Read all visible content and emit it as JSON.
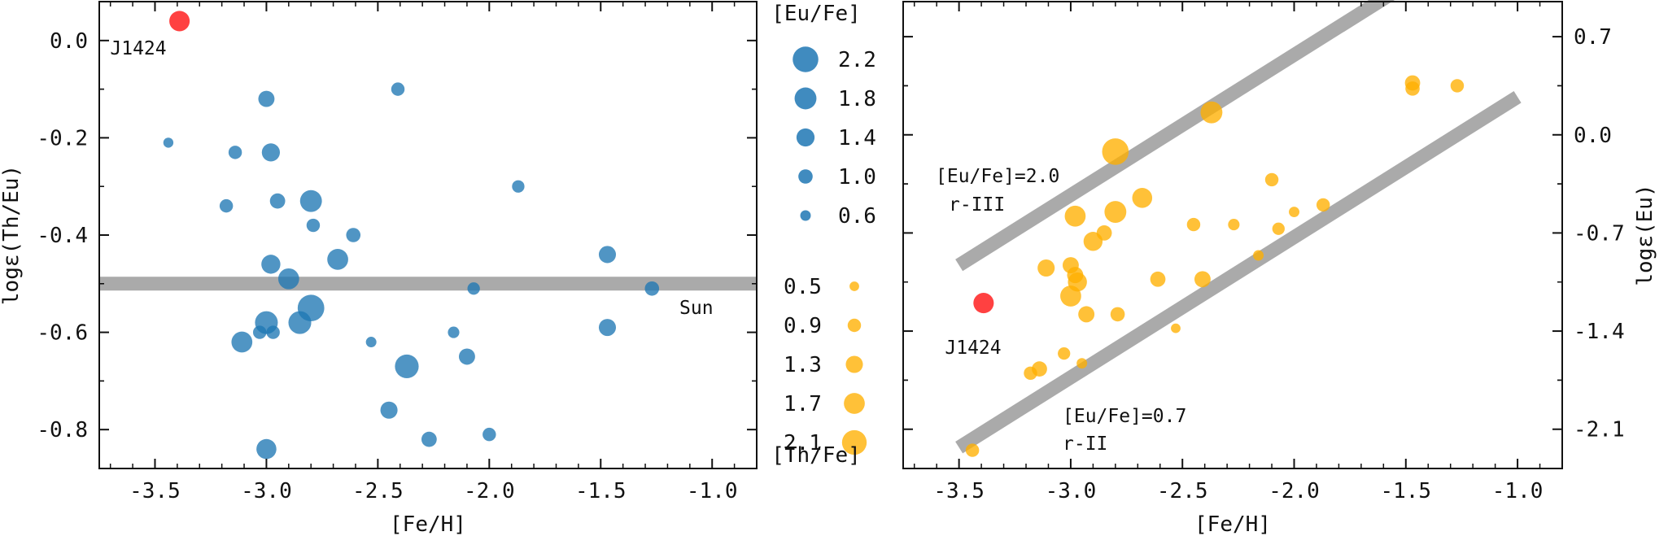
{
  "colors": {
    "eu_points": "#1f77b4",
    "th_points": "#ffb000",
    "star": "#ff2020",
    "band": "#aaaaaa"
  },
  "chart_data": [
    {
      "type": "scatter",
      "panel": "left",
      "xlabel": "[Fe/H]",
      "ylabel": "logε(Th/Eu)",
      "xlim": [
        -3.75,
        -0.8
      ],
      "ylim": [
        -0.88,
        0.08
      ],
      "xticks": [
        -3.5,
        -3.0,
        -2.5,
        -2.0,
        -1.5,
        -1.0
      ],
      "xtick_labels": [
        "-3.5",
        "-3.0",
        "-2.5",
        "-2.0",
        "-1.5",
        "-1.0"
      ],
      "yticks": [
        0.0,
        -0.2,
        -0.4,
        -0.6,
        -0.8
      ],
      "ytick_labels": [
        "0.0",
        "-0.2",
        "-0.4",
        "-0.6",
        "-0.8"
      ],
      "size_variable": "[Eu/Fe]",
      "reference_line": {
        "label": "Sun",
        "y": -0.5
      },
      "highlight": {
        "label": "J1424",
        "x": -3.39,
        "y": 0.04,
        "size": 1.3
      },
      "points": [
        {
          "x": -3.44,
          "y": -0.21,
          "size": 0.55
        },
        {
          "x": -3.18,
          "y": -0.34,
          "size": 0.9
        },
        {
          "x": -3.14,
          "y": -0.23,
          "size": 0.9
        },
        {
          "x": -3.11,
          "y": -0.62,
          "size": 1.7
        },
        {
          "x": -3.03,
          "y": -0.6,
          "size": 0.9
        },
        {
          "x": -3.0,
          "y": -0.84,
          "size": 1.6
        },
        {
          "x": -3.0,
          "y": -0.12,
          "size": 1.2
        },
        {
          "x": -3.0,
          "y": -0.58,
          "size": 1.9
        },
        {
          "x": -2.98,
          "y": -0.46,
          "size": 1.5
        },
        {
          "x": -2.98,
          "y": -0.23,
          "size": 1.4
        },
        {
          "x": -2.97,
          "y": -0.6,
          "size": 0.9
        },
        {
          "x": -2.95,
          "y": -0.33,
          "size": 1.1
        },
        {
          "x": -2.9,
          "y": -0.49,
          "size": 1.7
        },
        {
          "x": -2.85,
          "y": -0.58,
          "size": 1.9
        },
        {
          "x": -2.8,
          "y": -0.55,
          "size": 2.3
        },
        {
          "x": -2.8,
          "y": -0.33,
          "size": 1.8
        },
        {
          "x": -2.79,
          "y": -0.38,
          "size": 0.9
        },
        {
          "x": -2.68,
          "y": -0.45,
          "size": 1.7
        },
        {
          "x": -2.61,
          "y": -0.4,
          "size": 1.0
        },
        {
          "x": -2.53,
          "y": -0.62,
          "size": 0.6
        },
        {
          "x": -2.45,
          "y": -0.76,
          "size": 1.3
        },
        {
          "x": -2.41,
          "y": -0.1,
          "size": 0.9
        },
        {
          "x": -2.37,
          "y": -0.67,
          "size": 2.0
        },
        {
          "x": -2.27,
          "y": -0.82,
          "size": 1.1
        },
        {
          "x": -2.16,
          "y": -0.6,
          "size": 0.7
        },
        {
          "x": -2.1,
          "y": -0.65,
          "size": 1.2
        },
        {
          "x": -2.07,
          "y": -0.51,
          "size": 0.8
        },
        {
          "x": -2.0,
          "y": -0.81,
          "size": 0.9
        },
        {
          "x": -1.87,
          "y": -0.3,
          "size": 0.8
        },
        {
          "x": -1.47,
          "y": -0.44,
          "size": 1.3
        },
        {
          "x": -1.47,
          "y": -0.59,
          "size": 1.3
        },
        {
          "x": -1.27,
          "y": -0.51,
          "size": 1.0
        }
      ]
    },
    {
      "type": "scatter",
      "panel": "right",
      "xlabel": "[Fe/H]",
      "ylabel": "logε(Eu)",
      "xlim": [
        -3.75,
        -0.8
      ],
      "ylim": [
        -2.38,
        0.95
      ],
      "xticks": [
        -3.5,
        -3.0,
        -2.5,
        -2.0,
        -1.5,
        -1.0
      ],
      "xtick_labels": [
        "-3.5",
        "-3.0",
        "-2.5",
        "-2.0",
        "-1.5",
        "-1.0"
      ],
      "yticks": [
        0.7,
        0.0,
        -0.7,
        -1.4,
        -2.1
      ],
      "ytick_labels": [
        "0.7",
        "0.0",
        "-0.7",
        "-1.4",
        "-2.1"
      ],
      "size_variable": "[Th/Fe]",
      "reference_lines": [
        {
          "label": "[Eu/Fe]=2.0",
          "sublabel": "r-III",
          "x": [
            -3.5,
            -1.5
          ],
          "y": [
            -0.93,
            1.07
          ]
        },
        {
          "label": "[Eu/Fe]=0.7",
          "sublabel": "r-II",
          "x": [
            -3.5,
            -1.0
          ],
          "y": [
            -2.23,
            0.27
          ]
        }
      ],
      "highlight": {
        "label": "J1424",
        "x": -3.39,
        "y": -1.2,
        "size": 1.3
      },
      "points": [
        {
          "x": -3.44,
          "y": -2.25,
          "size": 0.9
        },
        {
          "x": -3.18,
          "y": -1.7,
          "size": 0.9
        },
        {
          "x": -3.14,
          "y": -1.67,
          "size": 1.1
        },
        {
          "x": -3.11,
          "y": -0.95,
          "size": 1.3
        },
        {
          "x": -3.03,
          "y": -1.56,
          "size": 0.8
        },
        {
          "x": -3.0,
          "y": -0.93,
          "size": 1.2
        },
        {
          "x": -3.0,
          "y": -1.15,
          "size": 1.7
        },
        {
          "x": -2.98,
          "y": -0.58,
          "size": 1.7
        },
        {
          "x": -2.98,
          "y": -1.0,
          "size": 1.2
        },
        {
          "x": -2.97,
          "y": -1.05,
          "size": 1.5
        },
        {
          "x": -2.95,
          "y": -1.63,
          "size": 0.6
        },
        {
          "x": -2.93,
          "y": -1.28,
          "size": 1.2
        },
        {
          "x": -2.9,
          "y": -0.76,
          "size": 1.5
        },
        {
          "x": -2.85,
          "y": -0.7,
          "size": 1.1
        },
        {
          "x": -2.8,
          "y": -0.12,
          "size": 2.3
        },
        {
          "x": -2.8,
          "y": -0.55,
          "size": 1.8
        },
        {
          "x": -2.79,
          "y": -1.28,
          "size": 1.0
        },
        {
          "x": -2.68,
          "y": -0.45,
          "size": 1.6
        },
        {
          "x": -2.61,
          "y": -1.03,
          "size": 1.1
        },
        {
          "x": -2.53,
          "y": -1.38,
          "size": 0.5
        },
        {
          "x": -2.45,
          "y": -0.64,
          "size": 0.9
        },
        {
          "x": -2.41,
          "y": -1.03,
          "size": 1.2
        },
        {
          "x": -2.37,
          "y": 0.16,
          "size": 1.8
        },
        {
          "x": -2.27,
          "y": -0.64,
          "size": 0.7
        },
        {
          "x": -2.16,
          "y": -0.86,
          "size": 0.6
        },
        {
          "x": -2.1,
          "y": -0.32,
          "size": 0.9
        },
        {
          "x": -2.07,
          "y": -0.67,
          "size": 0.8
        },
        {
          "x": -2.0,
          "y": -0.55,
          "size": 0.6
        },
        {
          "x": -1.87,
          "y": -0.5,
          "size": 0.9
        },
        {
          "x": -1.47,
          "y": 0.37,
          "size": 1.1
        },
        {
          "x": -1.47,
          "y": 0.33,
          "size": 1.0
        },
        {
          "x": -1.27,
          "y": 0.35,
          "size": 0.9
        }
      ]
    }
  ],
  "legend": {
    "eu_title": "[Eu/Fe]",
    "eu_entries": [
      {
        "label": "2.2",
        "value": 2.2
      },
      {
        "label": "1.8",
        "value": 1.8
      },
      {
        "label": "1.4",
        "value": 1.4
      },
      {
        "label": "1.0",
        "value": 1.0
      },
      {
        "label": "0.6",
        "value": 0.6
      }
    ],
    "th_title": "[Th/Fe]",
    "th_entries": [
      {
        "label": "0.5",
        "value": 0.5
      },
      {
        "label": "0.9",
        "value": 0.9
      },
      {
        "label": "1.3",
        "value": 1.3
      },
      {
        "label": "1.7",
        "value": 1.7
      },
      {
        "label": "2.1",
        "value": 2.1
      }
    ]
  }
}
